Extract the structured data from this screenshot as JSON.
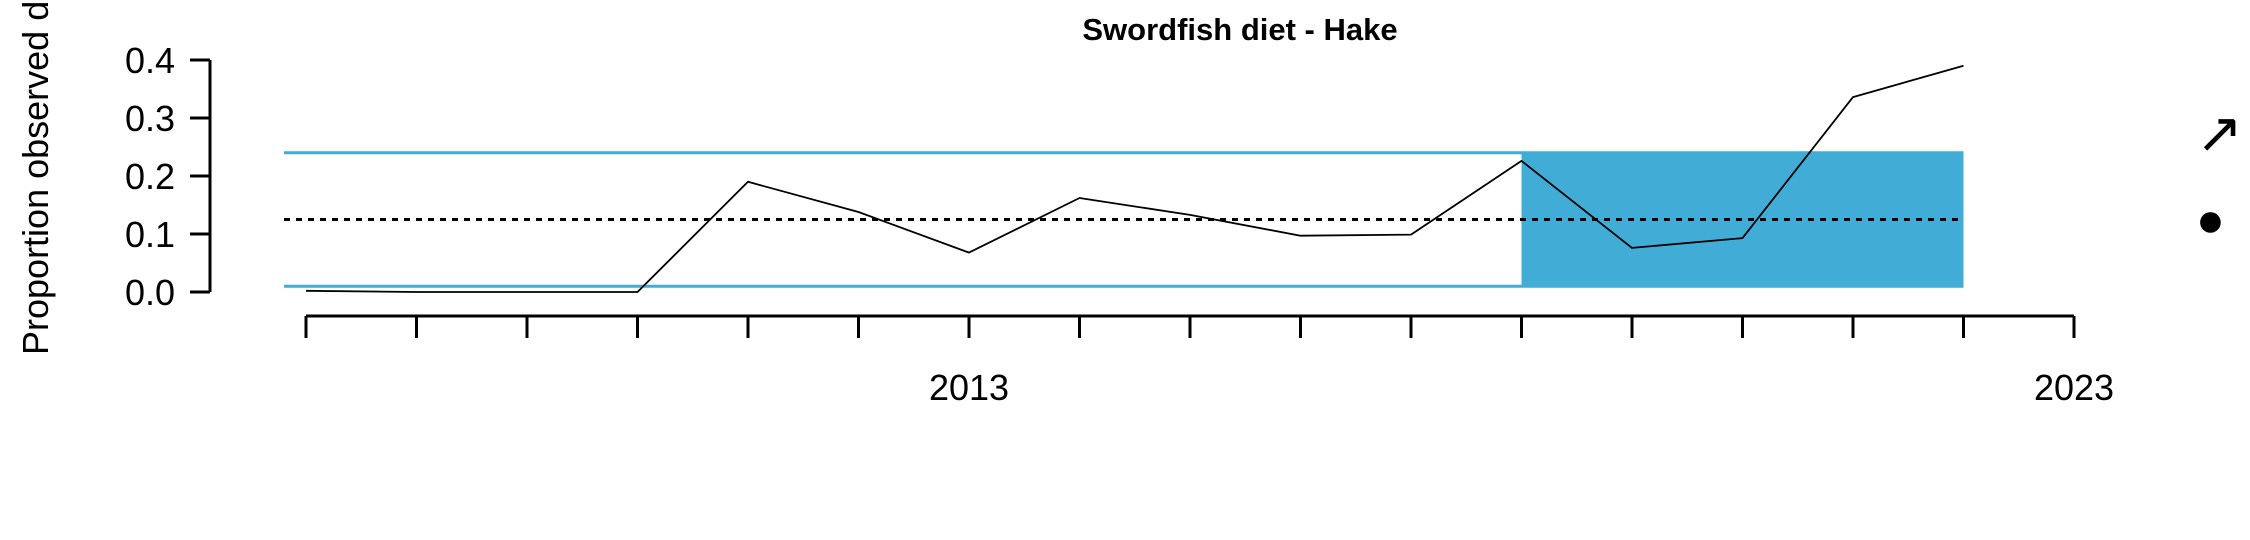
{
  "chart_data": {
    "type": "line",
    "title": "Swordfish diet - Hake",
    "xlabel": "",
    "ylabel": "Proportion observed diet",
    "x_tick_labels": [
      "2013",
      "2023"
    ],
    "y_tick_labels": [
      "0.0",
      "0.1",
      "0.2",
      "0.3",
      "0.4"
    ],
    "xlim": [
      2006.8,
      2023
    ],
    "ylim": [
      0,
      0.4
    ],
    "series": [
      {
        "x": [
          2007,
          2008,
          2009,
          2010,
          2011,
          2012,
          2013,
          2014,
          2015,
          2016,
          2017,
          2018,
          2019,
          2020,
          2021,
          2022
        ],
        "y": [
          0.002,
          0.0,
          0.0,
          0.0,
          0.19,
          0.138,
          0.068,
          0.162,
          0.133,
          0.097,
          0.099,
          0.226,
          0.076,
          0.093,
          0.336,
          0.39
        ]
      }
    ],
    "mean": 0.125,
    "upper_sd": 0.24,
    "lower_sd": 0.01,
    "highlight_x": [
      2018,
      2022
    ],
    "trend_indicator": "↗",
    "mean_indicator": "●",
    "colors": {
      "bands": "#41acd6",
      "line": "#000000",
      "mean_line": "#000000"
    }
  }
}
